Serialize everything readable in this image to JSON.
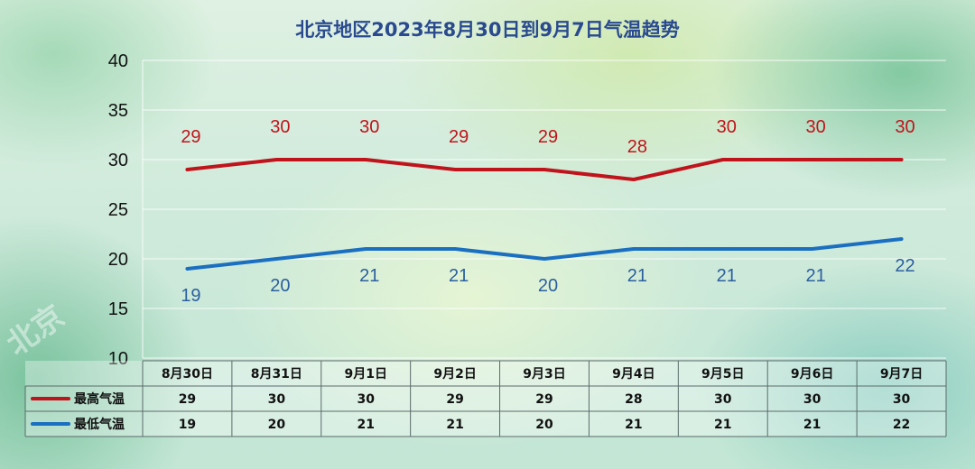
{
  "chart_data": {
    "type": "line",
    "title": "北京地区2023年8月30日到9月7日气温趋势",
    "categories": [
      "8月30日",
      "8月31日",
      "9月1日",
      "9月2日",
      "9月3日",
      "9月4日",
      "9月5日",
      "9月6日",
      "9月7日"
    ],
    "series": [
      {
        "name": "最高气温",
        "values": [
          29,
          30,
          30,
          29,
          29,
          28,
          30,
          30,
          30
        ],
        "color": "#c0141c"
      },
      {
        "name": "最低气温",
        "values": [
          19,
          20,
          21,
          21,
          20,
          21,
          21,
          21,
          22
        ],
        "color": "#1b6fc0"
      }
    ],
    "ylim": [
      10,
      40
    ],
    "yticks": [
      10,
      15,
      20,
      25,
      30,
      35,
      40
    ],
    "grid": true,
    "legend": "data-table-left"
  },
  "watermark": "北京"
}
